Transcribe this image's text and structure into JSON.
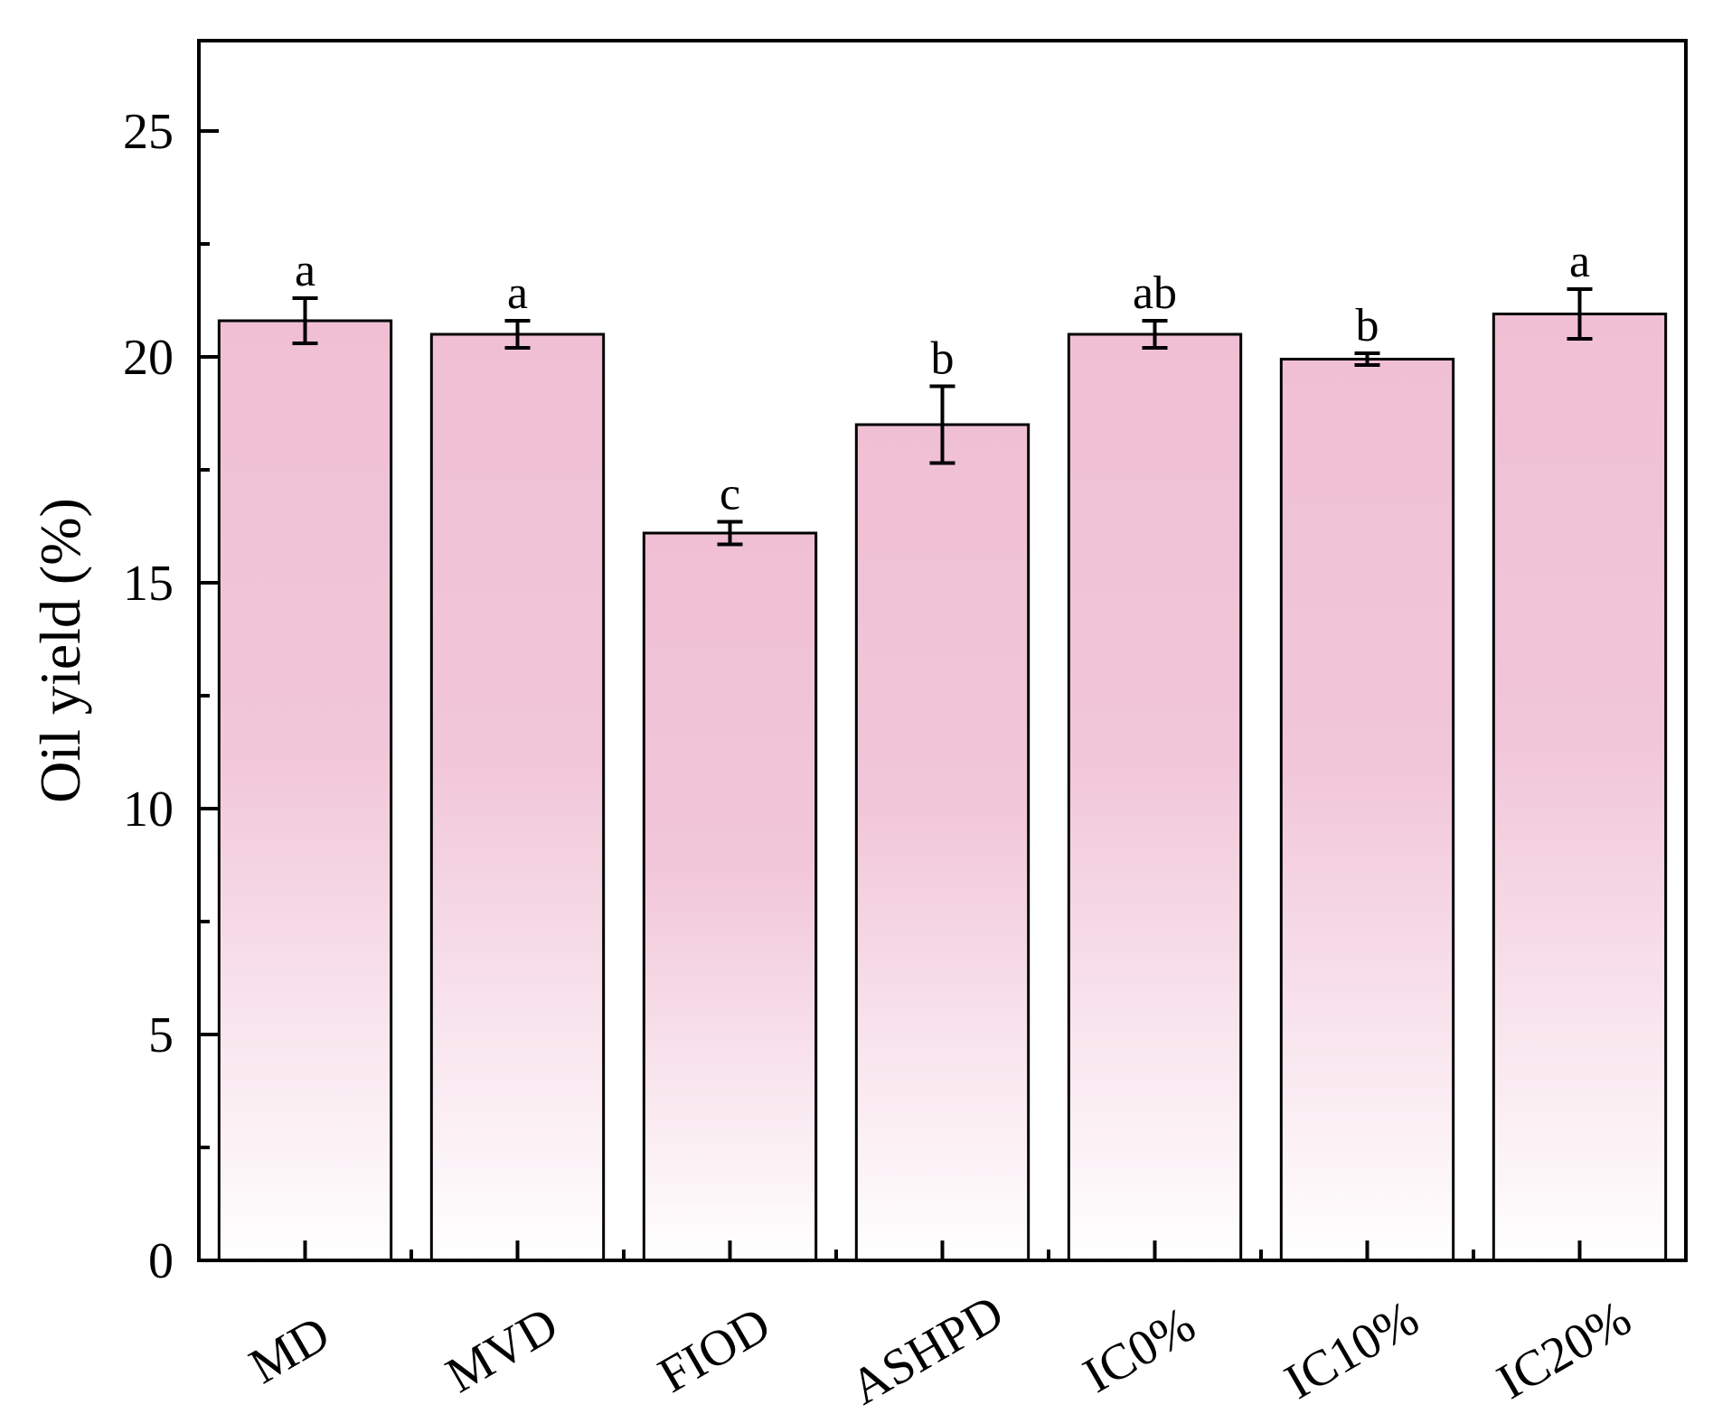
{
  "chart_data": {
    "type": "bar",
    "ylabel": "Oil yield (%)",
    "ylim": [
      0,
      27
    ],
    "yticks": [
      0,
      5,
      10,
      15,
      20,
      25
    ],
    "grid": false,
    "legend": "none",
    "bar_gradient": {
      "top": "#f0bfd3",
      "bottom": "#ffffff"
    },
    "categories": [
      "MD",
      "MVD",
      "FIOD",
      "ASHPD",
      "IC0%",
      "IC10%",
      "IC20%"
    ],
    "values": [
      20.8,
      20.5,
      16.1,
      18.5,
      20.5,
      19.95,
      20.95
    ],
    "errors": [
      0.5,
      0.3,
      0.25,
      0.85,
      0.3,
      0.13,
      0.55
    ],
    "significance": [
      "a",
      "a",
      "c",
      "b",
      "ab",
      "b",
      "a"
    ]
  }
}
